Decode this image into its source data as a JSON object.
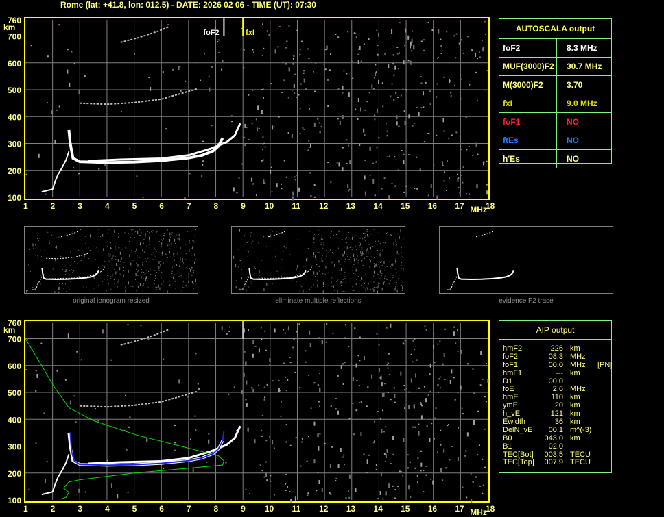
{
  "header": {
    "title": "Rome (lat: +41.8, lon: 012.5) - DATE: 2026 02 06 - TIME (UT): 07:30"
  },
  "colors": {
    "axis": "#ffff00",
    "grid": "#808080",
    "trace": "#ffffff",
    "profile": "#00e000",
    "fit": "#2020ff",
    "table_border": "#80f080"
  },
  "chart_data": [
    {
      "type": "scatter",
      "title": "",
      "xlabel": "MHz",
      "ylabel": "km",
      "xlim": [
        1,
        18
      ],
      "ylim": [
        100,
        760
      ],
      "x_ticks": [
        "1",
        "2",
        "3",
        "4",
        "5",
        "6",
        "7",
        "8",
        "9",
        "10",
        "11",
        "12",
        "13",
        "14",
        "15",
        "16",
        "17",
        "18"
      ],
      "y_ticks": [
        "100",
        "200",
        "300",
        "400",
        "500",
        "600",
        "700",
        "760"
      ],
      "grid": true,
      "markers": [
        {
          "label": "foF2",
          "x": 8.3
        },
        {
          "label": "fxI",
          "x": 9.0
        }
      ],
      "series": [
        {
          "points": [
            [
              1.6,
              120
            ],
            [
              1.8,
              125
            ],
            [
              2.0,
              130
            ],
            [
              2.1,
              160
            ],
            [
              2.2,
              185
            ],
            [
              2.35,
              210
            ],
            [
              2.5,
              240
            ],
            [
              2.6,
              270
            ]
          ]
        },
        {
          "points": [
            [
              2.6,
              350
            ],
            [
              2.65,
              300
            ],
            [
              2.75,
              245
            ],
            [
              3.0,
              232
            ],
            [
              4.0,
              229
            ],
            [
              5.0,
              231
            ],
            [
              6.0,
              236
            ],
            [
              7.0,
              246
            ],
            [
              7.5,
              256
            ],
            [
              7.9,
              272
            ],
            [
              8.1,
              290
            ],
            [
              8.25,
              320
            ]
          ]
        },
        {
          "points": [
            [
              3.3,
              235
            ],
            [
              4.5,
              240
            ],
            [
              6.0,
              244
            ],
            [
              7.0,
              256
            ],
            [
              7.8,
              280
            ],
            [
              8.4,
              305
            ],
            [
              8.7,
              330
            ],
            [
              8.9,
              375
            ]
          ]
        },
        {
          "points": [
            [
              3.0,
              450
            ],
            [
              4.0,
              446
            ],
            [
              5.0,
              452
            ],
            [
              6.0,
              465
            ],
            [
              6.7,
              485
            ],
            [
              7.3,
              503
            ]
          ]
        },
        {
          "points": [
            [
              4.5,
              676
            ],
            [
              5.2,
              695
            ],
            [
              5.8,
              715
            ],
            [
              6.3,
              735
            ]
          ]
        }
      ]
    },
    {
      "type": "line",
      "title": "",
      "xlabel": "MHz",
      "ylabel": "km",
      "xlim": [
        1,
        18
      ],
      "ylim": [
        100,
        760
      ],
      "series": [
        {
          "points": [
            [
              1.0,
              700
            ],
            [
              1.6,
              600
            ],
            [
              2.0,
              530
            ],
            [
              2.6,
              443
            ],
            [
              3.5,
              395
            ],
            [
              5.1,
              341
            ],
            [
              6.0,
              318
            ],
            [
              7.1,
              290
            ],
            [
              8.1,
              264
            ],
            [
              8.3,
              245
            ],
            [
              8.25,
              230
            ],
            [
              7.0,
              218
            ],
            [
              5.0,
              200
            ],
            [
              3.0,
              175
            ],
            [
              2.6,
              167
            ],
            [
              2.4,
              144
            ],
            [
              2.6,
              128
            ],
            [
              2.5,
              110
            ],
            [
              2.3,
              103
            ]
          ]
        },
        {
          "points": [
            [
              2.65,
              350
            ],
            [
              2.7,
              280
            ],
            [
              2.8,
              245
            ],
            [
              3.0,
              232
            ],
            [
              4.0,
              229
            ],
            [
              5.0,
              231
            ],
            [
              6.0,
              236
            ],
            [
              7.0,
              246
            ],
            [
              7.5,
              256
            ],
            [
              7.9,
              272
            ],
            [
              8.1,
              290
            ],
            [
              8.25,
              320
            ],
            [
              8.3,
              355
            ]
          ]
        }
      ]
    }
  ],
  "autoscala": {
    "title": "AUTOSCALA output",
    "rows": [
      {
        "label": "foF2",
        "value": "8.3 MHz",
        "color": "#ffffff"
      },
      {
        "label": "MUF(3000)F2",
        "value": "30.7 MHz",
        "color": "#ffff80"
      },
      {
        "label": "M(3000)F2",
        "value": "3.70",
        "color": "#ffff80"
      },
      {
        "label": "fxI",
        "value": "9.0 MHz",
        "color": "#e0e000"
      },
      {
        "label": "foF1",
        "value": "NO",
        "color": "#ff2020"
      },
      {
        "label": "ftEs",
        "value": "NO",
        "color": "#2080ff"
      },
      {
        "label": "h'Es",
        "value": "NO",
        "color": "#ffff80"
      }
    ]
  },
  "thumbnails": [
    {
      "caption": "original ionogram resized"
    },
    {
      "caption": "eliminate multiple reflections"
    },
    {
      "caption": "evidence F2 trace"
    }
  ],
  "aip": {
    "title": "AIP output",
    "rows": [
      {
        "name": "hmF2",
        "value": "226",
        "unit": "km",
        "note": ""
      },
      {
        "name": "foF2",
        "value": "08.3",
        "unit": "MHz",
        "note": ""
      },
      {
        "name": "foF1",
        "value": "00.0",
        "unit": "MHz",
        "note": "[PN]"
      },
      {
        "name": "hmF1",
        "value": "---",
        "unit": "km",
        "note": ""
      },
      {
        "name": "D1",
        "value": "00.0",
        "unit": "",
        "note": ""
      },
      {
        "name": "foE",
        "value": "2.6",
        "unit": "MHz",
        "note": ""
      },
      {
        "name": "hmE",
        "value": "110",
        "unit": "km",
        "note": ""
      },
      {
        "name": "ymE",
        "value": "20",
        "unit": "km",
        "note": ""
      },
      {
        "name": "h_vE",
        "value": "121",
        "unit": "km",
        "note": ""
      },
      {
        "name": "Ewidth",
        "value": "36",
        "unit": "km",
        "note": ""
      },
      {
        "name": "DelN_vE",
        "value": "00.1",
        "unit": "m^(-3)",
        "note": ""
      },
      {
        "name": "B0",
        "value": "043.0",
        "unit": "km",
        "note": ""
      },
      {
        "name": "B1",
        "value": "02.0",
        "unit": "",
        "note": ""
      },
      {
        "name": "TEC[Bot]",
        "value": "003.5",
        "unit": "TECU",
        "note": ""
      },
      {
        "name": "TEC[Top]",
        "value": "007.9",
        "unit": "TECU",
        "note": ""
      }
    ]
  }
}
